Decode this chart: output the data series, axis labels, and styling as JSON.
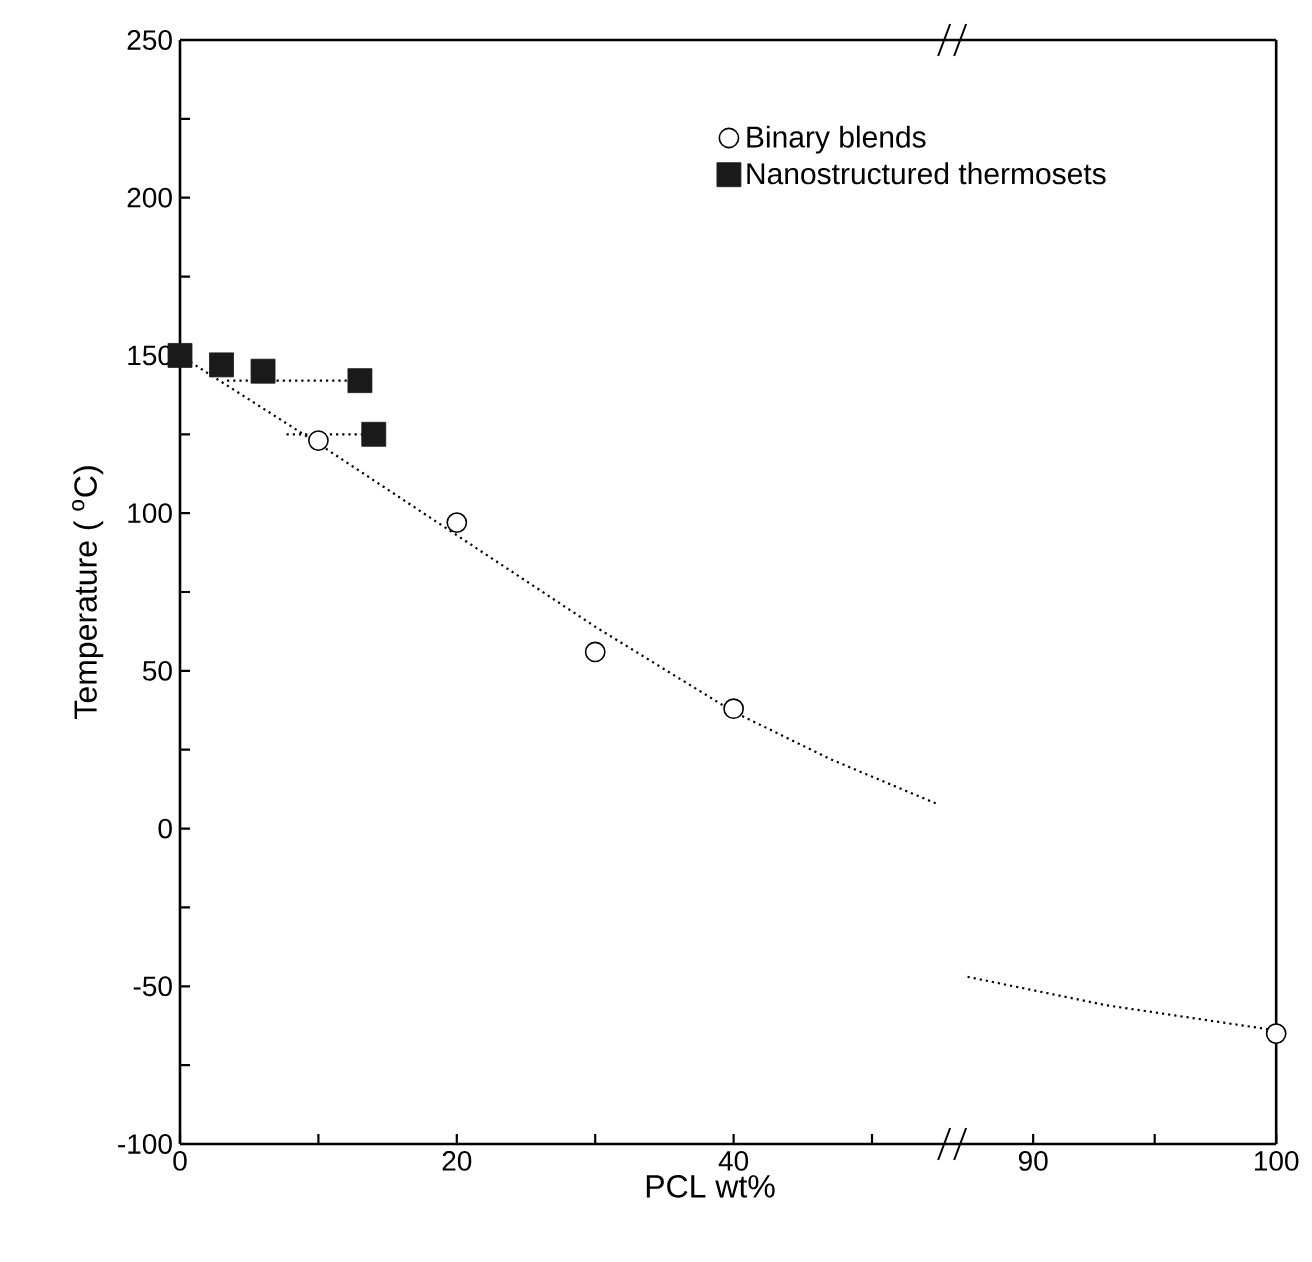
{
  "chart_data": [
    {
      "type": "scatter",
      "xlabel": "PCL wt%",
      "ylabel": "Temperature ( $^{o}$C)",
      "xlim": [
        0,
        55.5
      ],
      "ylim": [
        -100,
        250
      ],
      "xticks": [
        0,
        {
          "value": 10,
          "label": null
        },
        20,
        {
          "value": 30,
          "label": null
        },
        40,
        {
          "value": 50,
          "label": null
        }
      ],
      "yticks": [
        -100,
        {
          "value": -75,
          "label": null
        },
        -50,
        {
          "value": -25,
          "label": null
        },
        0,
        {
          "value": 25,
          "label": null
        },
        50,
        {
          "value": 75,
          "label": null
        },
        100,
        {
          "value": 125,
          "label": null
        },
        150,
        {
          "value": 175,
          "label": null
        },
        200,
        {
          "value": 225,
          "label": null
        },
        250
      ],
      "legend": "top right",
      "series": [
        {
          "name": "Binary blends",
          "color": "#000000",
          "marker": "circle",
          "x": [
            10,
            20,
            30,
            40
          ],
          "values": [
            123,
            97,
            56,
            38
          ]
        },
        {
          "name": "Nanostructured thermosets",
          "color": "#1a1a1a",
          "marker": "square",
          "x": [
            0,
            3,
            6,
            13,
            14
          ],
          "values": [
            150,
            147,
            145,
            142,
            125
          ]
        },
        {
          "type": "line",
          "color": "#000000",
          "line_style": "dotted",
          "marker": "none",
          "x": [
            0,
            10,
            20,
            30,
            40,
            47,
            54.6
          ],
          "values": [
            150,
            122,
            93,
            64,
            37,
            22,
            8
          ]
        },
        {
          "type": "line",
          "color": "#000000",
          "line_style": "dotted",
          "marker": "none",
          "x": [
            3.4,
            13
          ],
          "values": [
            142,
            142
          ]
        },
        {
          "type": "line",
          "color": "#000000",
          "line_style": "dotted",
          "marker": "none",
          "x": [
            7.7,
            14
          ],
          "values": [
            125,
            125
          ]
        }
      ]
    },
    {
      "type": "scatter",
      "xlim": [
        86.5,
        100
      ],
      "ylim": [
        -100,
        250
      ],
      "xticks": [
        90,
        {
          "value": 95,
          "label": null
        },
        100
      ],
      "tick_labels": "x",
      "series": [
        {
          "color": "#000000",
          "marker": "circle",
          "x": [
            100
          ],
          "values": [
            -65
          ]
        },
        {
          "type": "line",
          "color": "#000000",
          "line_style": "dotted",
          "marker": "none",
          "x": [
            87.3,
            93,
            100
          ],
          "values": [
            -47,
            -56,
            -64
          ]
        }
      ]
    }
  ]
}
